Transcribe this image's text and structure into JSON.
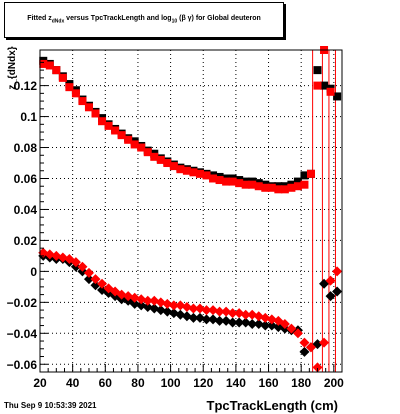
{
  "title_parts": {
    "fitted": "Fitted",
    "z": "z",
    "z_sub": "dNdx",
    "versus": "versus TpcTrackLength and log",
    "log_sub": "10",
    "tail": "(β γ) for Global deuteron"
  },
  "timestamp": "Thu Sep  9 10:53:39 2021",
  "chart_data": {
    "type": "scatter",
    "xlabel": "TpcTrackLength (cm)",
    "ylabel": "z_{dNdx}",
    "xlim": [
      20,
      205
    ],
    "ylim": [
      -0.065,
      0.143
    ],
    "x_ticks": [
      20,
      40,
      60,
      80,
      100,
      120,
      140,
      160,
      180,
      200
    ],
    "x_tick_labels": [
      "20",
      "40",
      "60",
      "80",
      "100",
      "120",
      "140",
      "160",
      "180",
      "200"
    ],
    "y_ticks": [
      -0.06,
      -0.04,
      -0.02,
      0,
      0.02,
      0.04,
      0.06,
      0.08,
      0.1,
      0.12
    ],
    "y_tick_labels": [
      "−0.06",
      "−0.04",
      "−0.02",
      "0",
      "0.02",
      "0.04",
      "0.06",
      "0.08",
      "0.1",
      "0.12"
    ],
    "grid": true,
    "series": [
      {
        "color": "#000000",
        "marker": "square",
        "x": [
          22,
          26,
          30,
          34,
          38,
          42,
          46,
          50,
          54,
          58,
          62,
          66,
          70,
          74,
          78,
          82,
          86,
          90,
          94,
          98,
          102,
          106,
          110,
          114,
          118,
          122,
          126,
          130,
          134,
          138,
          142,
          146,
          150,
          154,
          158,
          162,
          166,
          170,
          174,
          178,
          182,
          186,
          190,
          194,
          198,
          202
        ],
        "values": [
          0.136,
          0.134,
          0.13,
          0.126,
          0.121,
          0.117,
          0.111,
          0.107,
          0.103,
          0.099,
          0.095,
          0.092,
          0.089,
          0.086,
          0.084,
          0.081,
          0.078,
          0.076,
          0.073,
          0.071,
          0.069,
          0.067,
          0.066,
          0.065,
          0.064,
          0.063,
          0.062,
          0.061,
          0.06,
          0.06,
          0.059,
          0.058,
          0.058,
          0.057,
          0.056,
          0.055,
          0.055,
          0.055,
          0.056,
          0.058,
          0.062,
          0.063,
          0.13,
          0.12,
          0.118,
          0.113
        ]
      },
      {
        "color": "#ff0000",
        "marker": "square",
        "x": [
          22,
          26,
          30,
          34,
          38,
          42,
          46,
          50,
          54,
          58,
          62,
          66,
          70,
          74,
          78,
          82,
          86,
          90,
          94,
          98,
          102,
          106,
          110,
          114,
          118,
          122,
          126,
          130,
          134,
          138,
          142,
          146,
          150,
          154,
          158,
          162,
          166,
          170,
          174,
          178,
          182,
          186,
          190,
          194,
          198
        ],
        "values": [
          0.134,
          0.133,
          0.13,
          0.125,
          0.119,
          0.115,
          0.11,
          0.106,
          0.102,
          0.097,
          0.094,
          0.091,
          0.088,
          0.085,
          0.082,
          0.08,
          0.077,
          0.074,
          0.072,
          0.07,
          0.068,
          0.066,
          0.065,
          0.064,
          0.063,
          0.062,
          0.06,
          0.059,
          0.058,
          0.058,
          0.057,
          0.056,
          0.056,
          0.055,
          0.054,
          0.054,
          0.053,
          0.053,
          0.054,
          0.055,
          0.056,
          0.063,
          0.12,
          0.143,
          0.116
        ]
      },
      {
        "color": "#000000",
        "marker": "diamond",
        "x": [
          22,
          26,
          30,
          34,
          38,
          42,
          46,
          50,
          54,
          58,
          62,
          66,
          70,
          74,
          78,
          82,
          86,
          90,
          94,
          98,
          102,
          106,
          110,
          114,
          118,
          122,
          126,
          130,
          134,
          138,
          142,
          146,
          150,
          154,
          158,
          162,
          166,
          170,
          174,
          178,
          182,
          186,
          190,
          194,
          198,
          202
        ],
        "values": [
          0.01,
          0.009,
          0.008,
          0.008,
          0.006,
          0.003,
          0.0,
          -0.005,
          -0.009,
          -0.012,
          -0.014,
          -0.016,
          -0.018,
          -0.019,
          -0.021,
          -0.022,
          -0.023,
          -0.024,
          -0.025,
          -0.026,
          -0.027,
          -0.028,
          -0.029,
          -0.03,
          -0.03,
          -0.031,
          -0.031,
          -0.032,
          -0.032,
          -0.033,
          -0.033,
          -0.033,
          -0.034,
          -0.034,
          -0.035,
          -0.035,
          -0.036,
          -0.037,
          -0.038,
          -0.038,
          -0.052,
          -0.049,
          -0.047,
          -0.008,
          -0.016,
          -0.013
        ]
      },
      {
        "color": "#ff0000",
        "marker": "diamond",
        "x": [
          22,
          26,
          30,
          34,
          38,
          42,
          46,
          50,
          54,
          58,
          62,
          66,
          70,
          74,
          78,
          82,
          86,
          90,
          94,
          98,
          102,
          106,
          110,
          114,
          118,
          122,
          126,
          130,
          134,
          138,
          142,
          146,
          150,
          154,
          158,
          162,
          166,
          170,
          174,
          178,
          182,
          186,
          190,
          194,
          198,
          202
        ],
        "values": [
          0.012,
          0.011,
          0.01,
          0.009,
          0.008,
          0.006,
          0.003,
          -0.001,
          -0.005,
          -0.008,
          -0.011,
          -0.013,
          -0.015,
          -0.016,
          -0.017,
          -0.018,
          -0.019,
          -0.019,
          -0.02,
          -0.021,
          -0.022,
          -0.022,
          -0.023,
          -0.024,
          -0.024,
          -0.025,
          -0.025,
          -0.026,
          -0.026,
          -0.027,
          -0.027,
          -0.028,
          -0.028,
          -0.029,
          -0.03,
          -0.031,
          -0.032,
          -0.034,
          -0.037,
          -0.04,
          -0.046,
          -0.049,
          -0.062,
          -0.046,
          -0.006,
          0.0
        ]
      }
    ],
    "red_vertical_lines_x": [
      187,
      193,
      197,
      201
    ]
  }
}
